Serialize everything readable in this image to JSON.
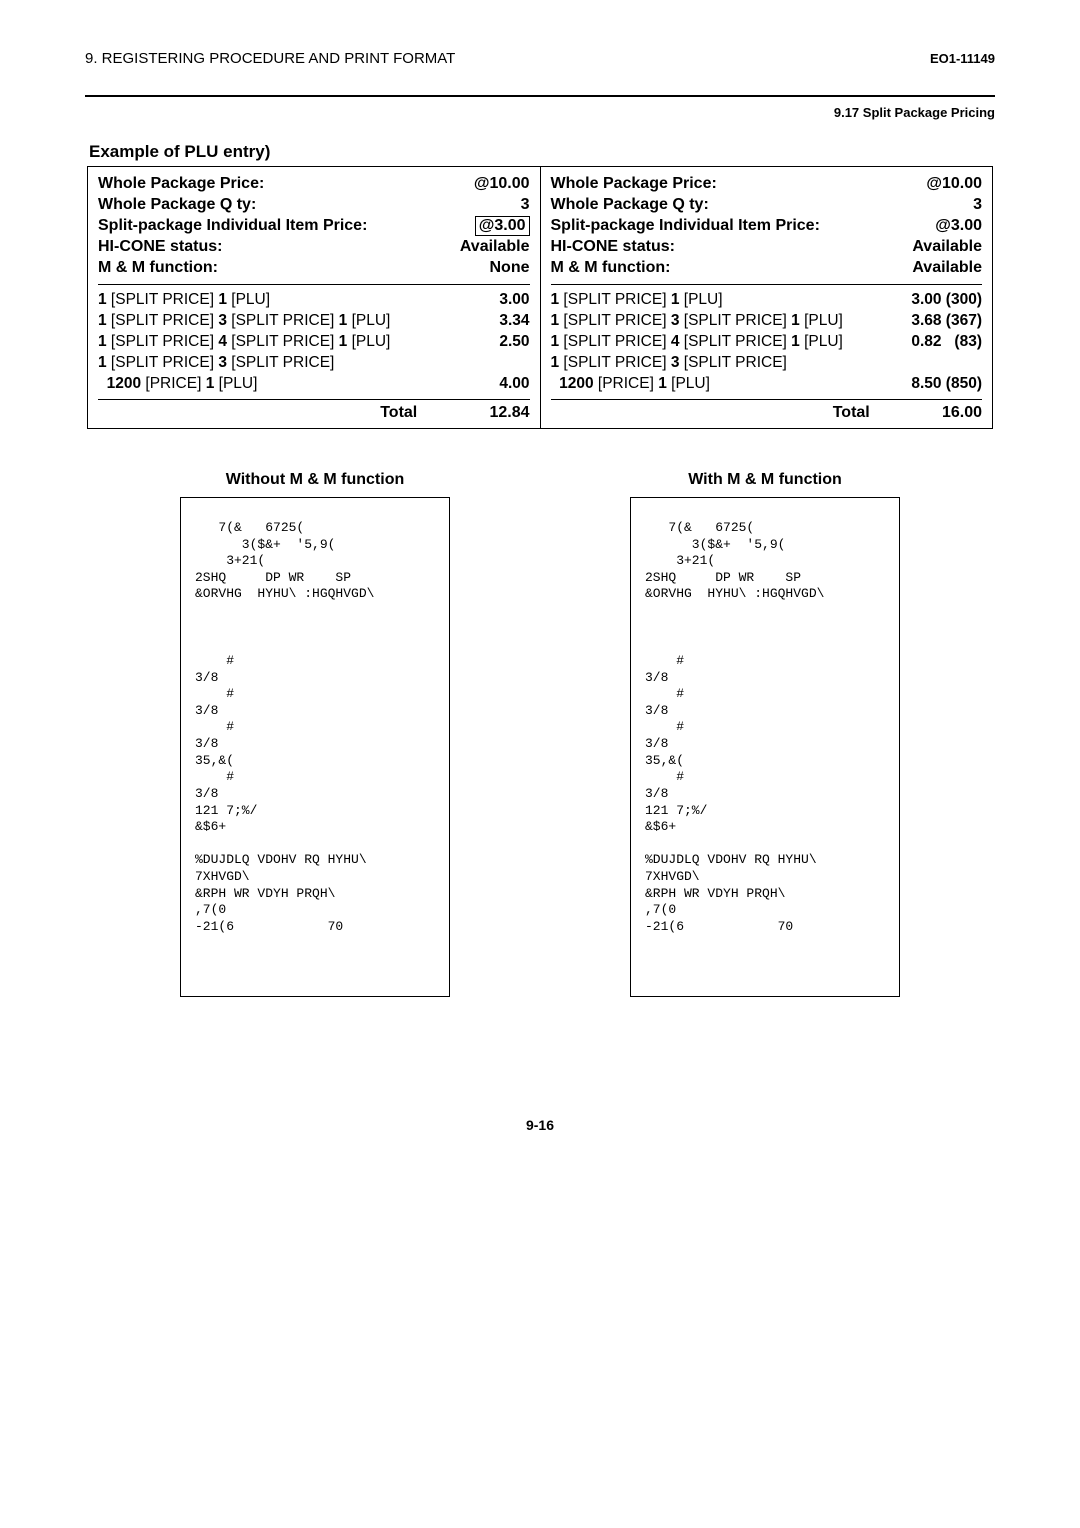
{
  "header": {
    "left": "9. REGISTERING PROCEDURE AND PRINT FORMAT",
    "right": "EO1-11149",
    "sub": "9.17 Split Package Pricing"
  },
  "example_title": "Example of PLU entry)",
  "panels": {
    "left": {
      "rows": [
        {
          "label": "Whole Package Price:",
          "val": "@10.00"
        },
        {
          "label": "Whole Package Q ty:",
          "val": "3"
        },
        {
          "label": "Split-package Individual Item Price:",
          "val": "@3.00",
          "boxed": true
        },
        {
          "label": "HI-CONE status:",
          "val": "Available"
        },
        {
          "label": "M & M function:",
          "val": "None"
        }
      ],
      "entries": [
        {
          "seq": "<b>1</b> [SPLIT PRICE]  <b>1</b> [PLU]",
          "amt": "3.00"
        },
        {
          "seq": "<b>1</b> [SPLIT PRICE]  <b>3</b> [SPLIT PRICE]  <b>1</b> [PLU]",
          "amt": "3.34"
        },
        {
          "seq": "<b>1</b> [SPLIT PRICE]  <b>4</b> [SPLIT PRICE]  <b>1</b> [PLU]",
          "amt": "2.50"
        },
        {
          "seq": "<b>1</b> [SPLIT PRICE]  <b>3</b> [SPLIT PRICE]",
          "amt": ""
        },
        {
          "seq": "&nbsp;&nbsp;<b>1200</b> [PRICE]  <b>1</b> [PLU]",
          "amt": "4.00"
        }
      ],
      "total": "12.84"
    },
    "right": {
      "rows": [
        {
          "label": "Whole Package Price:",
          "val": "@10.00"
        },
        {
          "label": "Whole Package Q ty:",
          "val": "3"
        },
        {
          "label": "Split-package Individual Item Price:",
          "val": "@3.00"
        },
        {
          "label": "HI-CONE status:",
          "val": "Available"
        },
        {
          "label": "M & M function:",
          "val": "Available"
        }
      ],
      "entries": [
        {
          "seq": "<b>1</b> [SPLIT PRICE]  <b>1</b> [PLU]",
          "amt": "3.00 (300)"
        },
        {
          "seq": "<b>1</b> [SPLIT PRICE]  <b>3</b> [SPLIT PRICE]  <b>1</b> [PLU]",
          "amt": "3.68 (367)"
        },
        {
          "seq": "<b>1</b> [SPLIT PRICE]  <b>4</b> [SPLIT PRICE]  <b>1</b> [PLU]",
          "amt": "0.82&nbsp;&nbsp;&nbsp;(83)"
        },
        {
          "seq": "<b>1</b> [SPLIT PRICE]  <b>3</b> [SPLIT PRICE]",
          "amt": ""
        },
        {
          "seq": "&nbsp;&nbsp;<b>1200</b> [PRICE]  <b>1</b> [PLU]",
          "amt": "8.50 (850)"
        }
      ],
      "total": "16.00"
    }
  },
  "receipts": {
    "left_title": "Without M & M function",
    "right_title": "With M & M function",
    "left_text": "   7(&   6725(\n      3($&+  '5,9(\n    3+21(\n2SHQ     DP WR    SP\n&ORVHG  HYHU\\ :HGQHVGD\\\n\n\n\n    #\n3/8\n    #\n3/8\n    #\n3/8\n35,&(\n    #\n3/8\n121 7;%/\n&$6+\n\n%DUJDLQ VDOHV RQ HYHU\\\n7XHVGD\\\n&RPH WR VDYH PRQH\\\n,7(0\n-21(6            70",
    "right_text": "   7(&   6725(\n      3($&+  '5,9(\n    3+21(\n2SHQ     DP WR    SP\n&ORVHG  HYHU\\ :HGQHVGD\\\n\n\n\n    #\n3/8\n    #\n3/8\n    #\n3/8\n35,&(\n    #\n3/8\n121 7;%/\n&$6+\n\n%DUJDLQ VDOHV RQ HYHU\\\n7XHVGD\\\n&RPH WR VDYH PRQH\\\n,7(0\n-21(6            70"
  },
  "page_num": "9-16"
}
